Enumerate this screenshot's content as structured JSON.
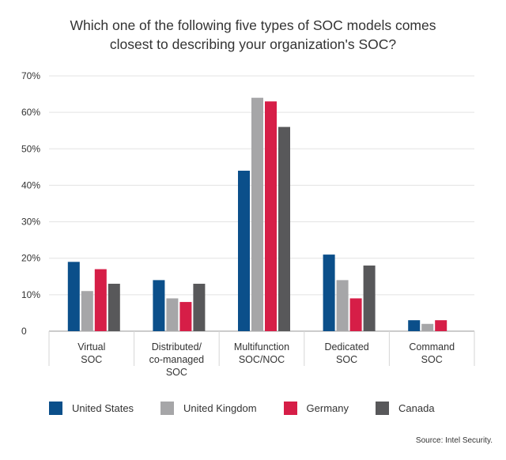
{
  "title_line1": "Which one of the following five types of SOC models comes",
  "title_line2": "closest to describing your organization's SOC?",
  "source": "Source: Intel Security.",
  "chart_data": {
    "type": "bar",
    "categories": [
      [
        "Virtual",
        "SOC"
      ],
      [
        "Distributed/",
        "co-managed",
        "SOC"
      ],
      [
        "Multifunction",
        "SOC/NOC"
      ],
      [
        "Dedicated",
        "SOC"
      ],
      [
        "Command",
        "SOC"
      ]
    ],
    "yticks": [
      "0",
      "10%",
      "20%",
      "30%",
      "40%",
      "50%",
      "60%",
      "70%"
    ],
    "ylim": [
      0,
      70
    ],
    "grid": true,
    "legend_position": "bottom",
    "series": [
      {
        "name": "United States",
        "color": "#0b4f8a",
        "values": [
          19,
          14,
          44,
          21,
          3
        ]
      },
      {
        "name": "United Kingdom",
        "color": "#a6a6a8",
        "values": [
          11,
          9,
          64,
          14,
          2
        ]
      },
      {
        "name": "Germany",
        "color": "#d61e47",
        "values": [
          17,
          8,
          63,
          9,
          3
        ]
      },
      {
        "name": "Canada",
        "color": "#58585a",
        "values": [
          13,
          13,
          56,
          18,
          0
        ]
      }
    ]
  }
}
